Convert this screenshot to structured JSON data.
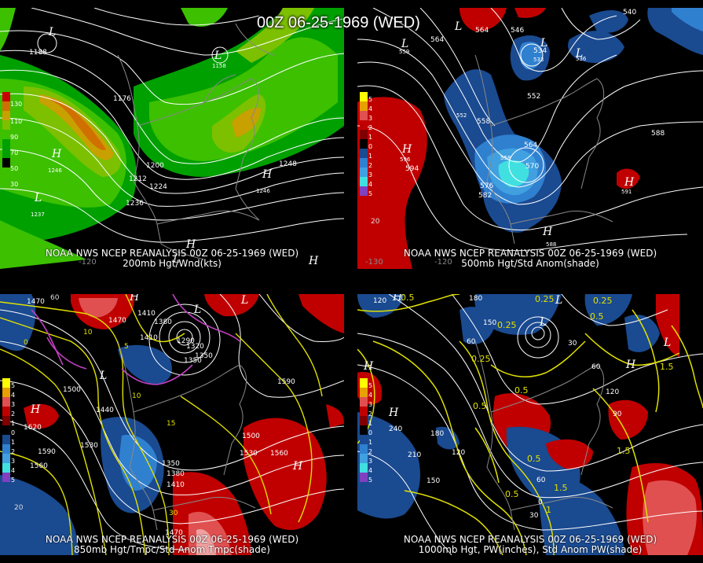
{
  "header": {
    "title": "00Z 06-25-1969 (WED)"
  },
  "panels": [
    {
      "id": "p200",
      "caption_line1": "NOAA NWS NCEP REANALYSIS 00Z 06-25-1969 (WED)",
      "caption_line2": "200mb Hgt/Wnd(kts)",
      "scale_labels": [
        "130",
        "110",
        "90",
        "70",
        "50",
        "30"
      ],
      "scale_colors": [
        "#c80000",
        "#d07000",
        "#c8a000",
        "#7cc000",
        "#3cc000",
        "#00a000"
      ],
      "contour_labels": [
        "1188",
        "1176",
        "1200",
        "1212",
        "1224",
        "1236",
        "1248",
        "1237",
        "1246",
        "1158",
        "1246"
      ],
      "hl_labels": [
        "L",
        "L",
        "H",
        "L",
        "H",
        "H",
        "L",
        "H"
      ],
      "lon_labels": [
        "-120"
      ]
    },
    {
      "id": "p500",
      "caption_line1": "NOAA NWS NCEP REANALYSIS 00Z 06-25-1969 (WED)",
      "caption_line2": "500mb Hgt/Std Anom(shade)",
      "scale_labels": [
        "5",
        "4",
        "3",
        "2",
        "1",
        "0",
        "1",
        "2",
        "3",
        "4",
        "5"
      ],
      "scale_colors": [
        "#ffff00",
        "#e8a000",
        "#e05050",
        "#c00000",
        "#800000",
        "#000000",
        "#1a4a90",
        "#3080d0",
        "#40a0e0",
        "#40e0e0",
        "#8040c0"
      ],
      "contour_labels": [
        "564",
        "564",
        "540",
        "546",
        "534",
        "533",
        "536",
        "552",
        "558",
        "564",
        "570",
        "576",
        "582",
        "588",
        "594",
        "591",
        "596",
        "559",
        "558",
        "552",
        "588",
        "20"
      ],
      "hl_labels": [
        "L",
        "L",
        "L",
        "H",
        "L",
        "H",
        "H"
      ],
      "lon_labels": [
        "-130",
        "-120"
      ]
    },
    {
      "id": "p850",
      "caption_line1": "NOAA NWS NCEP REANALYSIS 00Z 06-25-1969 (WED)",
      "caption_line2": "850mb Hgt/Tmpc/Std Anom Tmpc(shade)",
      "scale_labels": [
        "5",
        "4",
        "3",
        "2",
        "1",
        "0",
        "1",
        "2",
        "3",
        "4",
        "5"
      ],
      "scale_colors": [
        "#ffff00",
        "#e8a000",
        "#e05050",
        "#c00000",
        "#800000",
        "#000000",
        "#1a4a90",
        "#3080d0",
        "#40a0e0",
        "#40e0e0",
        "#8040c0"
      ],
      "contour_labels": [
        "1470",
        "1410",
        "1470",
        "1380",
        "1410",
        "1290",
        "1320",
        "1350",
        "1350",
        "1500",
        "1440",
        "1530",
        "1560",
        "1590",
        "1620",
        "1500",
        "1530",
        "1560",
        "1350",
        "1380",
        "1410",
        "1590",
        "1470",
        "10",
        "5",
        "0",
        "10",
        "15",
        "30",
        "20",
        "60"
      ],
      "hl_labels": [
        "H",
        "L",
        "H",
        "L",
        "H",
        "L"
      ],
      "lon_labels": []
    },
    {
      "id": "p1000",
      "caption_line1": "NOAA NWS NCEP REANALYSIS 00Z 06-25-1969 (WED)",
      "caption_line2": "1000mb Hgt, PW(inches), Std Anom PW(shade)",
      "scale_labels": [
        "5",
        "4",
        "3",
        "2",
        "1",
        "0",
        "1",
        "2",
        "3",
        "4",
        "5"
      ],
      "scale_colors": [
        "#ffff00",
        "#e8a000",
        "#e05050",
        "#c00000",
        "#800000",
        "#000000",
        "#1a4a90",
        "#3080d0",
        "#40a0e0",
        "#40e0e0",
        "#8040c0"
      ],
      "contour_labels": [
        "120",
        "0.5",
        "180",
        "150",
        "60",
        "0.25",
        "0.25",
        "0.25",
        "0.5",
        "0.5",
        "120",
        "90",
        "210",
        "180",
        "150",
        "120",
        "0.5",
        "0.5",
        "60",
        "30",
        "0",
        "1.5",
        "1.5",
        "240",
        "30",
        "60",
        "0.25",
        "0.5",
        "1.5",
        "1"
      ],
      "hl_labels": [
        "H",
        "L",
        "H",
        "L",
        "H",
        "L",
        "H"
      ],
      "lon_labels": []
    }
  ]
}
